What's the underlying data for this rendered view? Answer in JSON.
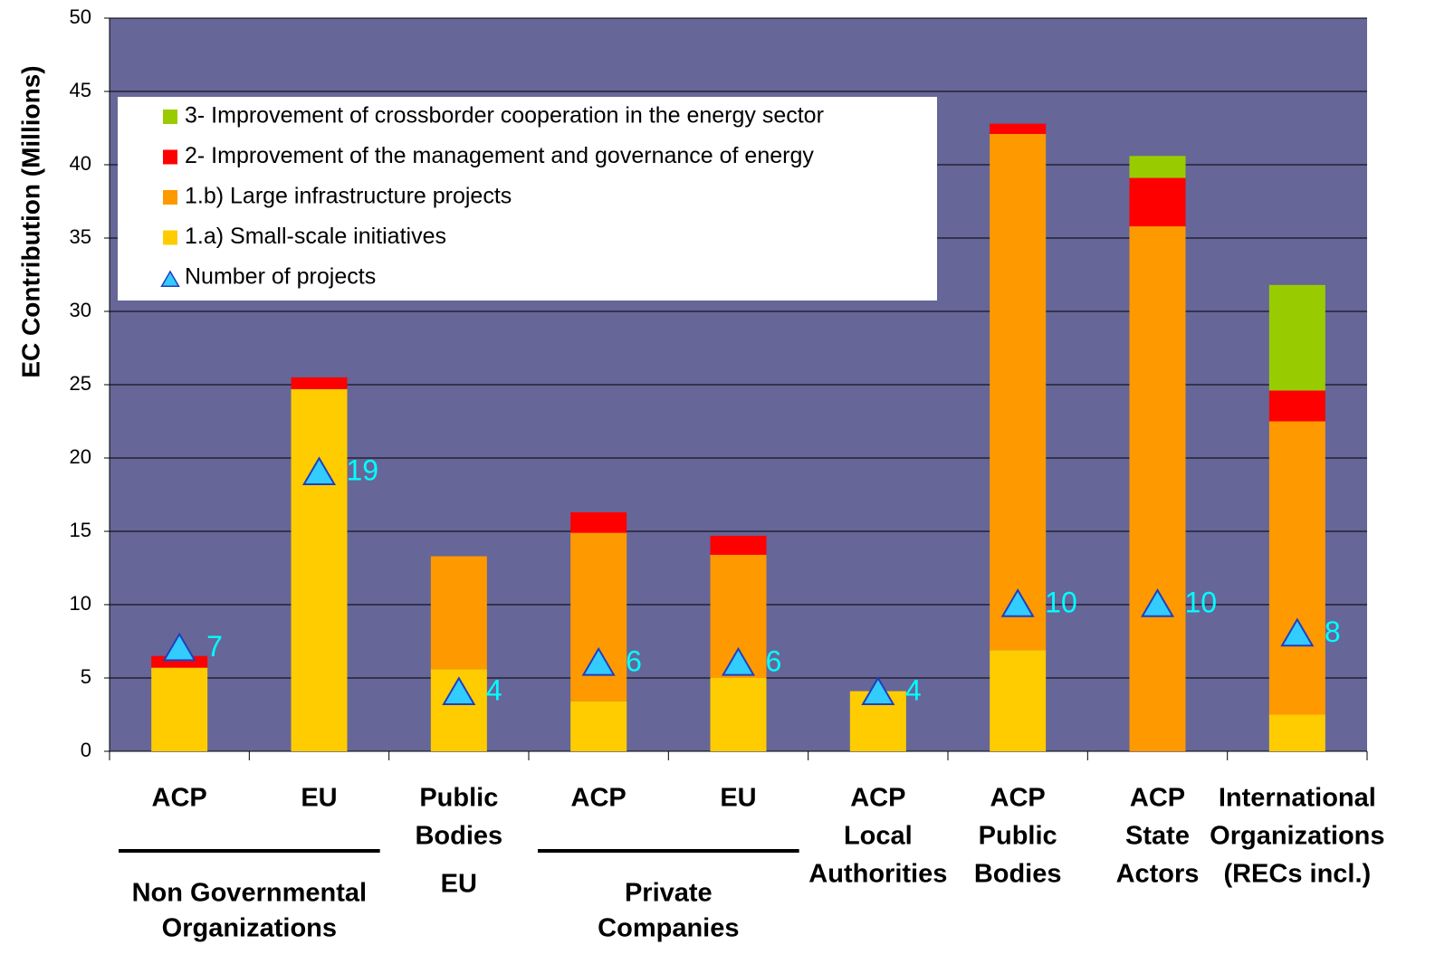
{
  "chart_data": {
    "type": "stacked_bar",
    "y_label": "EC Contribution (Millions)",
    "ylim": [
      0,
      50
    ],
    "yticks": [
      0,
      5,
      10,
      15,
      20,
      25,
      30,
      35,
      40,
      45,
      50
    ],
    "grid": true,
    "background": "#666699",
    "legend": "upper left",
    "categories": [
      [
        "ACP"
      ],
      [
        "EU"
      ],
      [
        "Public",
        "Bodies"
      ],
      [
        "ACP"
      ],
      [
        "EU"
      ],
      [
        "ACP",
        "Local",
        "Authorities"
      ],
      [
        "ACP",
        "Public",
        "Bodies"
      ],
      [
        "ACP",
        "State",
        "Actors"
      ],
      [
        "International",
        "Organizations",
        "(RECs incl.)"
      ]
    ],
    "groups": [
      {
        "label": [
          "Non Governmental",
          "Organizations"
        ],
        "span": [
          0,
          1
        ]
      },
      {
        "label": [
          "EU"
        ],
        "span": [
          2,
          2
        ]
      },
      {
        "label": [
          "Private",
          "Companies"
        ],
        "span": [
          3,
          4
        ]
      }
    ],
    "series": [
      {
        "name": "1.a) Small-scale initiatives",
        "color": "#ffcc00",
        "values": [
          5.7,
          24.7,
          5.6,
          3.4,
          5.0,
          4.1,
          6.9,
          0,
          2.5
        ]
      },
      {
        "name": "1.b) Large infrastructure projects",
        "color": "#ff9900",
        "values": [
          0,
          0,
          7.7,
          11.5,
          8.4,
          0,
          35.2,
          35.8,
          20.0
        ]
      },
      {
        "name": "2- Improvement of the management and governance of energy",
        "color": "#ff0000",
        "values": [
          0.8,
          0.8,
          0,
          1.4,
          1.3,
          0,
          0.7,
          3.3,
          2.1
        ]
      },
      {
        "name": "3- Improvement of crossborder cooperation in the energy sector",
        "color": "#99cc00",
        "values": [
          0,
          0,
          0,
          0,
          0,
          0,
          0,
          1.5,
          7.2
        ]
      }
    ],
    "markers": {
      "name": "Number of projects",
      "color": "#33ccff",
      "label_color": "#00ffff",
      "values": [
        7,
        19,
        4,
        6,
        6,
        4,
        10,
        10,
        8
      ]
    }
  }
}
